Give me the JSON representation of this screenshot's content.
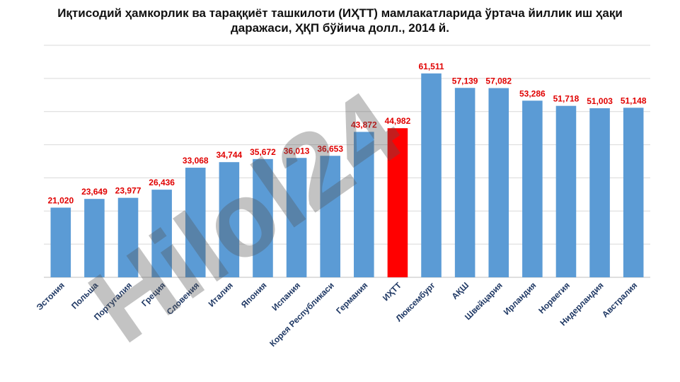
{
  "chart_data": {
    "type": "bar",
    "title_lines": [
      "Иқтисодий ҳамкорлик ва тараққиёт ташкилоти (ИҲТТ) мамлакатларида ўртача йиллик иш ҳақи",
      "даражаси, ҲҚП бўйича долл., 2014 й."
    ],
    "categories": [
      "Эстония",
      "Польша",
      "Португалия",
      "Греция",
      "Словения",
      "Италия",
      "Япония",
      "Испания",
      "Корея Республикаси",
      "Германия",
      "ИҲТТ",
      "Люксембург",
      "АҚШ",
      "Швейцария",
      "Ирландия",
      "Норвегия",
      "Нидерландия",
      "Австралия"
    ],
    "values": [
      21020,
      23649,
      23977,
      26436,
      33068,
      34744,
      35672,
      36013,
      36653,
      43872,
      44982,
      61511,
      57139,
      57082,
      53286,
      51718,
      51003,
      51148
    ],
    "value_labels": [
      "21,020",
      "23,649",
      "23,977",
      "26,436",
      "33,068",
      "34,744",
      "35,672",
      "36,013",
      "36,653",
      "43,872",
      "44,982",
      "61,511",
      "57,139",
      "57,082",
      "53,286",
      "51,718",
      "51,003",
      "51,148"
    ],
    "highlight_category": "ИҲТТ",
    "ylim": [
      0,
      70000
    ],
    "grid": true,
    "legend": "none",
    "colors": {
      "bar": "#5b9bd5",
      "highlight": "#ff0000",
      "value_label": "#e00000",
      "category_label": "#1f3864",
      "grid": "#d9d9d9"
    },
    "watermark": "Hilol24"
  }
}
